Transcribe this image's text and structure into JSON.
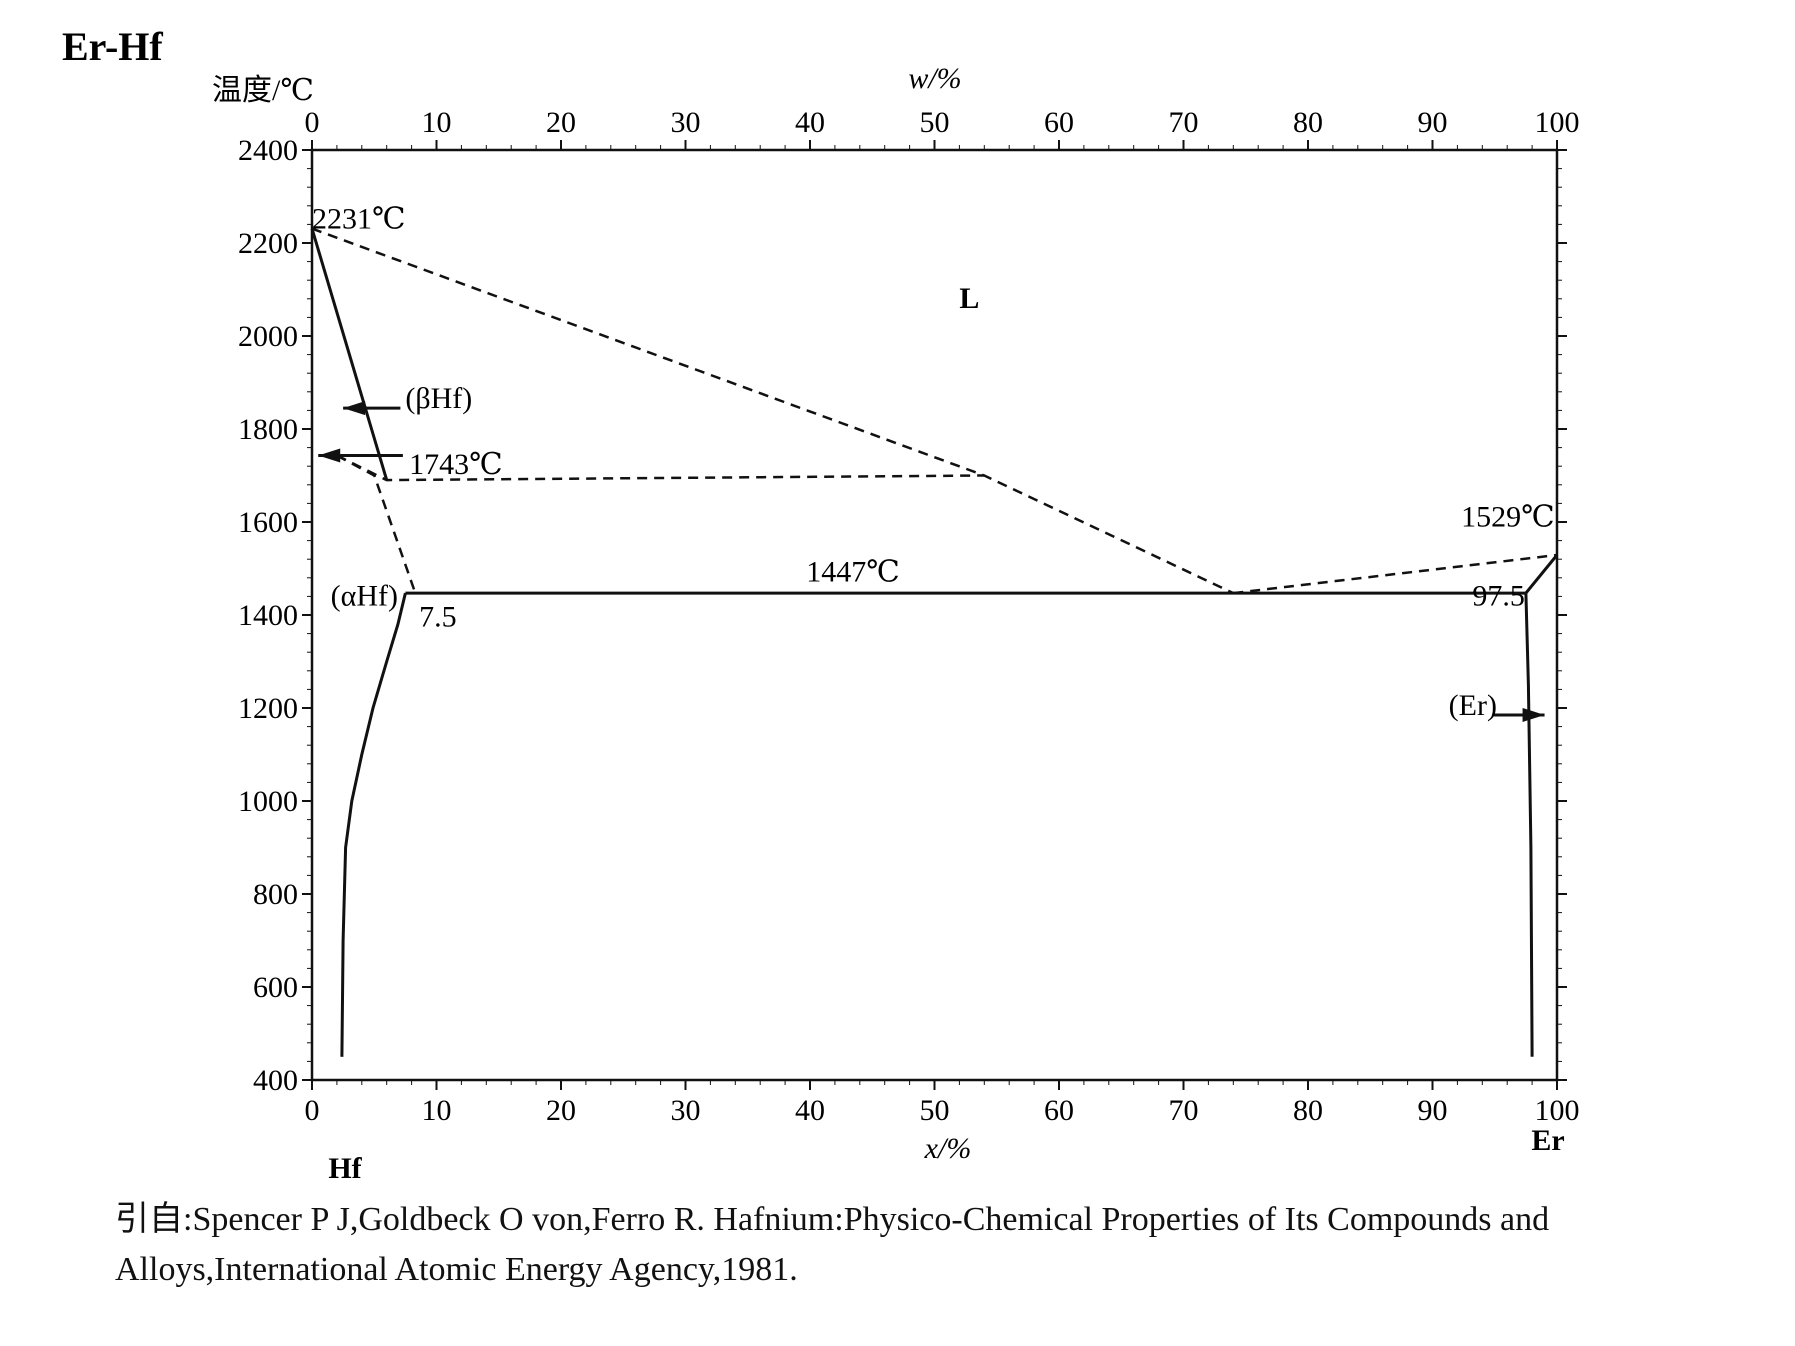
{
  "chart_data": {
    "type": "line",
    "title": "Er-Hf",
    "ylabel": "温度/℃",
    "xlabel_top": "w/%",
    "xlabel_bottom": "x/%",
    "ylim": [
      400,
      2400
    ],
    "xlim": [
      0,
      100
    ],
    "y_ticks": [
      400,
      600,
      800,
      1000,
      1200,
      1400,
      1600,
      1800,
      2000,
      2200,
      2400
    ],
    "x_ticks": [
      0,
      10,
      20,
      30,
      40,
      50,
      60,
      70,
      80,
      90,
      100
    ],
    "element_left": "Hf",
    "element_right": "Er",
    "grid": false,
    "series": [
      {
        "style": "solid",
        "x": [
          0,
          6
        ],
        "y": [
          2231,
          1690
        ]
      },
      {
        "style": "dashed",
        "x": [
          0,
          54,
          74
        ],
        "y": [
          2231,
          1700,
          1447
        ]
      },
      {
        "style": "dashed",
        "x": [
          2,
          6,
          54
        ],
        "y": [
          1743,
          1690,
          1700
        ]
      },
      {
        "style": "dashed",
        "x": [
          2,
          5,
          8.3
        ],
        "y": [
          1743,
          1700,
          1447
        ]
      },
      {
        "style": "solid",
        "x": [
          7.5,
          74,
          97.5
        ],
        "y": [
          1447,
          1447,
          1447
        ]
      },
      {
        "style": "dashed",
        "x": [
          74,
          100
        ],
        "y": [
          1447,
          1529
        ]
      },
      {
        "style": "solid",
        "x": [
          97.5,
          100
        ],
        "y": [
          1447,
          1529
        ]
      },
      {
        "style": "solid",
        "x": [
          7.5,
          6.9,
          6,
          4.9,
          4,
          3.2,
          2.7,
          2.5,
          2.4
        ],
        "y": [
          1447,
          1380,
          1300,
          1200,
          1100,
          1000,
          900,
          700,
          450
        ]
      },
      {
        "style": "solid",
        "x": [
          97.5,
          97.7,
          97.9,
          98
        ],
        "y": [
          1447,
          1250,
          900,
          450
        ]
      }
    ],
    "annotations": [
      {
        "text": "2231℃",
        "x": 0,
        "y": 2231
      },
      {
        "text": "L",
        "x": 52,
        "y": 2060
      },
      {
        "text": "(βHf)",
        "x": 7.5,
        "y": 1845
      },
      {
        "text": "1743℃",
        "x": 7.8,
        "y": 1703
      },
      {
        "text": "1529℃",
        "x": 92.3,
        "y": 1590
      },
      {
        "text": "1447℃",
        "x": 39.7,
        "y": 1472
      },
      {
        "text": "(αHf)",
        "x": 1.5,
        "y": 1420
      },
      {
        "text": "7.5",
        "x": 8.6,
        "y": 1375
      },
      {
        "text": "97.5",
        "x": 93.2,
        "y": 1420
      },
      {
        "text": "(Er)",
        "x": 91.3,
        "y": 1185
      }
    ]
  },
  "reference": {
    "line1": "引自:Spencer P J,Goldbeck O von,Ferro R.  Hafnium:Physico-Chemical Properties of Its Compounds and",
    "line2": "Alloys,International Atomic Energy Agency,1981."
  }
}
